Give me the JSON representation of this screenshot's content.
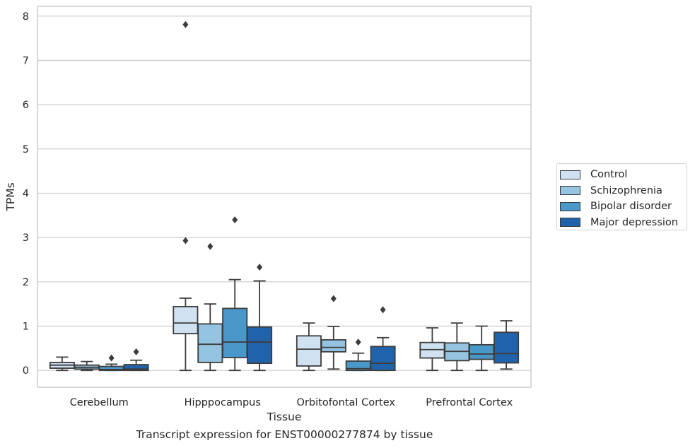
{
  "caption": "Transcript expression for ENST00000277874 by tissue",
  "chart_data": {
    "type": "boxplot",
    "xlabel": "Tissue",
    "ylabel": "TPMs",
    "ylim": [
      -0.38,
      8.22
    ],
    "yticks": [
      0,
      1,
      2,
      3,
      4,
      5,
      6,
      7,
      8
    ],
    "grid": "horizontal",
    "legend_position": "right",
    "categories": [
      "Cerebellum",
      "Hipppocampus",
      "Orbitofontal Cortex",
      "Prefrontal Cortex"
    ],
    "series": [
      {
        "name": "Control",
        "color": "#d0e1f2",
        "boxes": [
          {
            "whislo": 0.0,
            "q1": 0.05,
            "med": 0.12,
            "q3": 0.18,
            "whishi": 0.3,
            "fliers": []
          },
          {
            "whislo": 0.0,
            "q1": 0.83,
            "med": 1.07,
            "q3": 1.44,
            "whishi": 1.63,
            "fliers": [
              2.93,
              7.81
            ]
          },
          {
            "whislo": 0.0,
            "q1": 0.1,
            "med": 0.48,
            "q3": 0.78,
            "whishi": 1.07,
            "fliers": []
          },
          {
            "whislo": 0.0,
            "q1": 0.28,
            "med": 0.47,
            "q3": 0.63,
            "whishi": 0.96,
            "fliers": []
          }
        ]
      },
      {
        "name": "Schizophrenia",
        "color": "#94c4df",
        "boxes": [
          {
            "whislo": 0.0,
            "q1": 0.03,
            "med": 0.07,
            "q3": 0.12,
            "whishi": 0.2,
            "fliers": []
          },
          {
            "whislo": 0.0,
            "q1": 0.18,
            "med": 0.59,
            "q3": 1.05,
            "whishi": 1.5,
            "fliers": [
              2.8
            ]
          },
          {
            "whislo": 0.03,
            "q1": 0.42,
            "med": 0.52,
            "q3": 0.69,
            "whishi": 0.99,
            "fliers": [
              1.62
            ]
          },
          {
            "whislo": 0.0,
            "q1": 0.22,
            "med": 0.43,
            "q3": 0.62,
            "whishi": 1.07,
            "fliers": []
          }
        ]
      },
      {
        "name": "Bipolar disorder",
        "color": "#4a98c9",
        "boxes": [
          {
            "whislo": 0.0,
            "q1": 0.0,
            "med": 0.02,
            "q3": 0.09,
            "whishi": 0.14,
            "fliers": [
              0.28
            ]
          },
          {
            "whislo": 0.0,
            "q1": 0.29,
            "med": 0.64,
            "q3": 1.4,
            "whishi": 2.05,
            "fliers": [
              3.4
            ]
          },
          {
            "whislo": 0.0,
            "q1": 0.0,
            "med": 0.04,
            "q3": 0.21,
            "whishi": 0.39,
            "fliers": [
              0.64
            ]
          },
          {
            "whislo": 0.0,
            "q1": 0.25,
            "med": 0.37,
            "q3": 0.58,
            "whishi": 1.0,
            "fliers": []
          }
        ]
      },
      {
        "name": "Major depression",
        "color": "#2163aa",
        "boxes": [
          {
            "whislo": 0.0,
            "q1": 0.0,
            "med": 0.03,
            "q3": 0.13,
            "whishi": 0.23,
            "fliers": [
              0.42
            ]
          },
          {
            "whislo": 0.0,
            "q1": 0.16,
            "med": 0.64,
            "q3": 0.98,
            "whishi": 2.02,
            "fliers": [
              2.33
            ]
          },
          {
            "whislo": 0.0,
            "q1": 0.0,
            "med": 0.16,
            "q3": 0.54,
            "whishi": 0.74,
            "fliers": [
              1.37
            ]
          },
          {
            "whislo": 0.03,
            "q1": 0.17,
            "med": 0.38,
            "q3": 0.86,
            "whishi": 1.12,
            "fliers": []
          }
        ]
      }
    ]
  }
}
